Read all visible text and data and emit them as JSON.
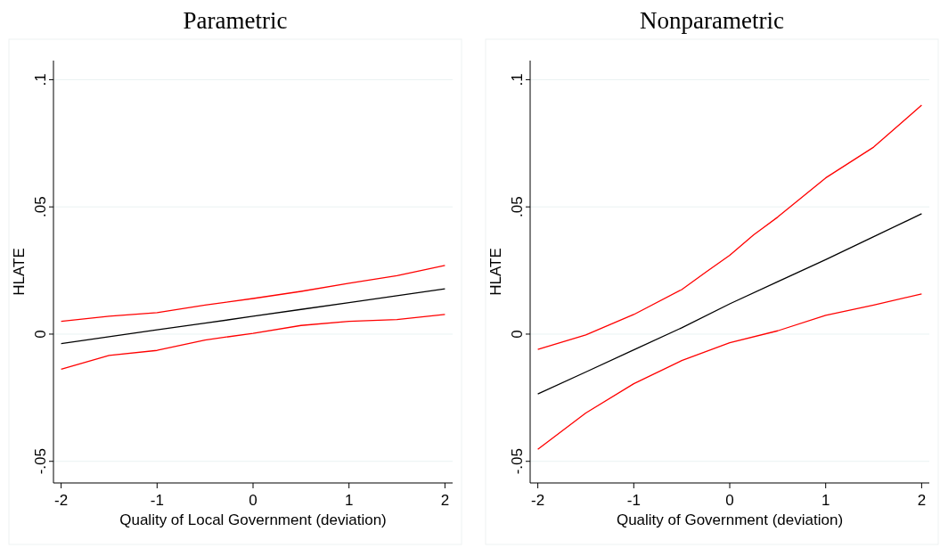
{
  "chart_data": [
    {
      "type": "line",
      "title": "Parametric",
      "xlabel": "Quality of Local Government (deviation)",
      "ylabel": "HLATE",
      "x": [
        -2,
        -1.5,
        -1,
        -0.5,
        0,
        0.5,
        1,
        1.5,
        2
      ],
      "xlim": [
        -2.08,
        2.08
      ],
      "xticks": [
        -2,
        -1,
        0,
        1,
        2
      ],
      "ylim": [
        -0.0585,
        0.1075
      ],
      "yticks": [
        {
          "value": -0.05,
          "label": "-.05"
        },
        0,
        {
          "value": 0.05,
          "label": ".05"
        },
        {
          "value": 0.1,
          "label": ".1"
        }
      ],
      "grid": "y",
      "line_style": "solid",
      "series": [
        {
          "color": "#000000",
          "values": [
            -0.0037,
            -0.001,
            0.0017,
            0.0043,
            0.007,
            0.0097,
            0.0124,
            0.0151,
            0.0178
          ]
        },
        {
          "color": "#ff0000",
          "values": [
            0.005,
            0.007,
            0.0084,
            0.0114,
            0.014,
            0.0168,
            0.02,
            0.023,
            0.027
          ]
        },
        {
          "color": "#ff0000",
          "values": [
            -0.0138,
            -0.0084,
            -0.0064,
            -0.0023,
            0.0003,
            0.0034,
            0.005,
            0.0057,
            0.0077
          ]
        }
      ]
    },
    {
      "type": "line",
      "title": "Nonparametric",
      "xlabel": "Quality of Government (deviation)",
      "ylabel": "HLATE",
      "x": [
        -2,
        -1.5,
        -1,
        -0.5,
        0,
        0.5,
        1,
        1.5,
        2
      ],
      "xlim": [
        -2.08,
        2.08
      ],
      "xticks": [
        -2,
        -1,
        0,
        1,
        2
      ],
      "ylim": [
        -0.0585,
        0.1075
      ],
      "yticks": [
        {
          "value": -0.05,
          "label": "-.05"
        },
        0,
        {
          "value": 0.05,
          "label": ".05"
        },
        {
          "value": 0.1,
          "label": ".1"
        }
      ],
      "grid": "y",
      "line_style": "solid",
      "series": [
        {
          "color": "#000000",
          "values": [
            -0.0235,
            -0.0149,
            -0.0062,
            0.0025,
            0.0119,
            0.0206,
            0.0293,
            0.0383,
            0.0473
          ]
        },
        {
          "color": "#ff0000",
          "x": [
            -2,
            -1.5,
            -1,
            -0.5,
            -0.25,
            0,
            0.25,
            0.5,
            1,
            1.5,
            2
          ],
          "values": [
            -0.006,
            -0.0003,
            0.0077,
            0.0175,
            0.0243,
            0.031,
            0.039,
            0.046,
            0.0614,
            0.0735,
            0.09
          ]
        },
        {
          "color": "#ff0000",
          "values": [
            -0.0453,
            -0.031,
            -0.0195,
            -0.0104,
            -0.0034,
            0.0013,
            0.0074,
            0.0114,
            0.0158
          ]
        }
      ]
    }
  ]
}
